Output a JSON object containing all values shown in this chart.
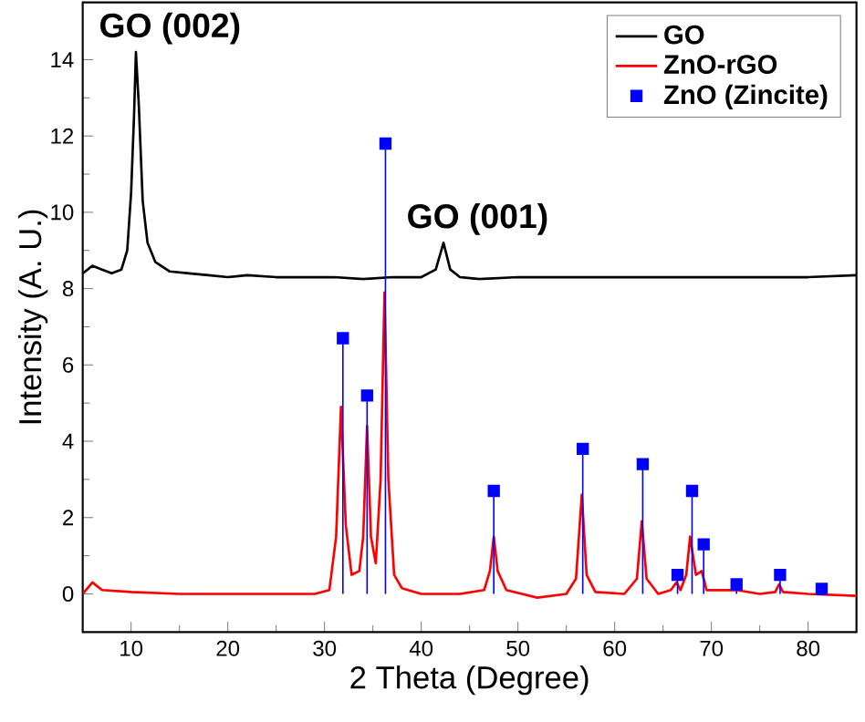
{
  "chart_data": {
    "type": "line",
    "xlabel": "2 Theta (Degree)",
    "ylabel": "Intensity (A. U.)",
    "xlim": [
      5,
      85
    ],
    "ylim": [
      -1,
      15.5
    ],
    "xticks": [
      10,
      20,
      30,
      40,
      50,
      60,
      70,
      80
    ],
    "yticks": [
      0,
      2,
      4,
      6,
      8,
      10,
      12,
      14
    ],
    "grid": false,
    "legend": "top right",
    "line_style": "solid",
    "annotations": [
      {
        "text": "GO (002)",
        "x": 10.5,
        "y": 14.2
      },
      {
        "text": "GO (001)",
        "x": 42.3,
        "y": 9.2
      }
    ],
    "series": [
      {
        "name": "GO",
        "color": "#000000",
        "marker": "none",
        "x": [
          5,
          6,
          7,
          8,
          9,
          9.6,
          10,
          10.3,
          10.5,
          10.8,
          11.2,
          11.7,
          12.5,
          14,
          16,
          18,
          20,
          22,
          25,
          28,
          31,
          34,
          37,
          40,
          41.5,
          42.3,
          43,
          44,
          46,
          50,
          55,
          60,
          65,
          70,
          75,
          80,
          85
        ],
        "values": [
          8.4,
          8.6,
          8.5,
          8.4,
          8.5,
          9.0,
          10.5,
          12.5,
          14.2,
          12.8,
          10.3,
          9.2,
          8.7,
          8.45,
          8.4,
          8.35,
          8.3,
          8.35,
          8.3,
          8.3,
          8.3,
          8.25,
          8.3,
          8.3,
          8.5,
          9.2,
          8.5,
          8.3,
          8.25,
          8.3,
          8.3,
          8.3,
          8.3,
          8.3,
          8.3,
          8.3,
          8.35
        ]
      },
      {
        "name": "ZnO-rGO",
        "color": "#ff0000",
        "marker": "none",
        "x": [
          5,
          6,
          7,
          10,
          15,
          20,
          25,
          29,
          30.5,
          31.2,
          31.7,
          32.2,
          32.8,
          33.6,
          34.0,
          34.4,
          34.8,
          35.3,
          35.8,
          36.2,
          36.6,
          37.2,
          38,
          40,
          44,
          46.5,
          47.1,
          47.5,
          47.9,
          48.8,
          52,
          55,
          56,
          56.6,
          57.1,
          58,
          61,
          62.3,
          62.8,
          63.3,
          64.5,
          65.8,
          66.4,
          66.8,
          67.4,
          67.8,
          68.4,
          69.0,
          69.5,
          72.6,
          75,
          76.6,
          77,
          77.4,
          80,
          85
        ],
        "values": [
          0,
          0.3,
          0.1,
          0.05,
          0,
          0,
          0,
          0,
          0.1,
          1.5,
          4.9,
          1.8,
          0.5,
          0.6,
          1.5,
          4.4,
          1.5,
          0.8,
          3,
          7.9,
          3,
          0.5,
          0.15,
          0,
          0,
          0.1,
          0.6,
          1.5,
          0.6,
          0.1,
          -0.1,
          0,
          0.4,
          2.6,
          0.5,
          0.05,
          0,
          0.4,
          1.9,
          0.4,
          0,
          0.1,
          0.3,
          0.1,
          0.5,
          1.5,
          0.5,
          0.6,
          0.1,
          0.1,
          0,
          0.05,
          0.25,
          0.05,
          0,
          -0.05
        ]
      },
      {
        "name": "ZnO (Zincite)",
        "color": "#0000ff",
        "type": "lollipop",
        "marker": "square",
        "x": [
          31.9,
          34.4,
          36.3,
          47.5,
          56.7,
          62.9,
          66.5,
          68.0,
          69.2,
          72.6,
          77.1,
          81.4
        ],
        "values": [
          6.7,
          5.2,
          11.8,
          2.7,
          3.8,
          3.4,
          0.5,
          2.7,
          1.3,
          0.25,
          0.5,
          0.13
        ]
      }
    ]
  }
}
